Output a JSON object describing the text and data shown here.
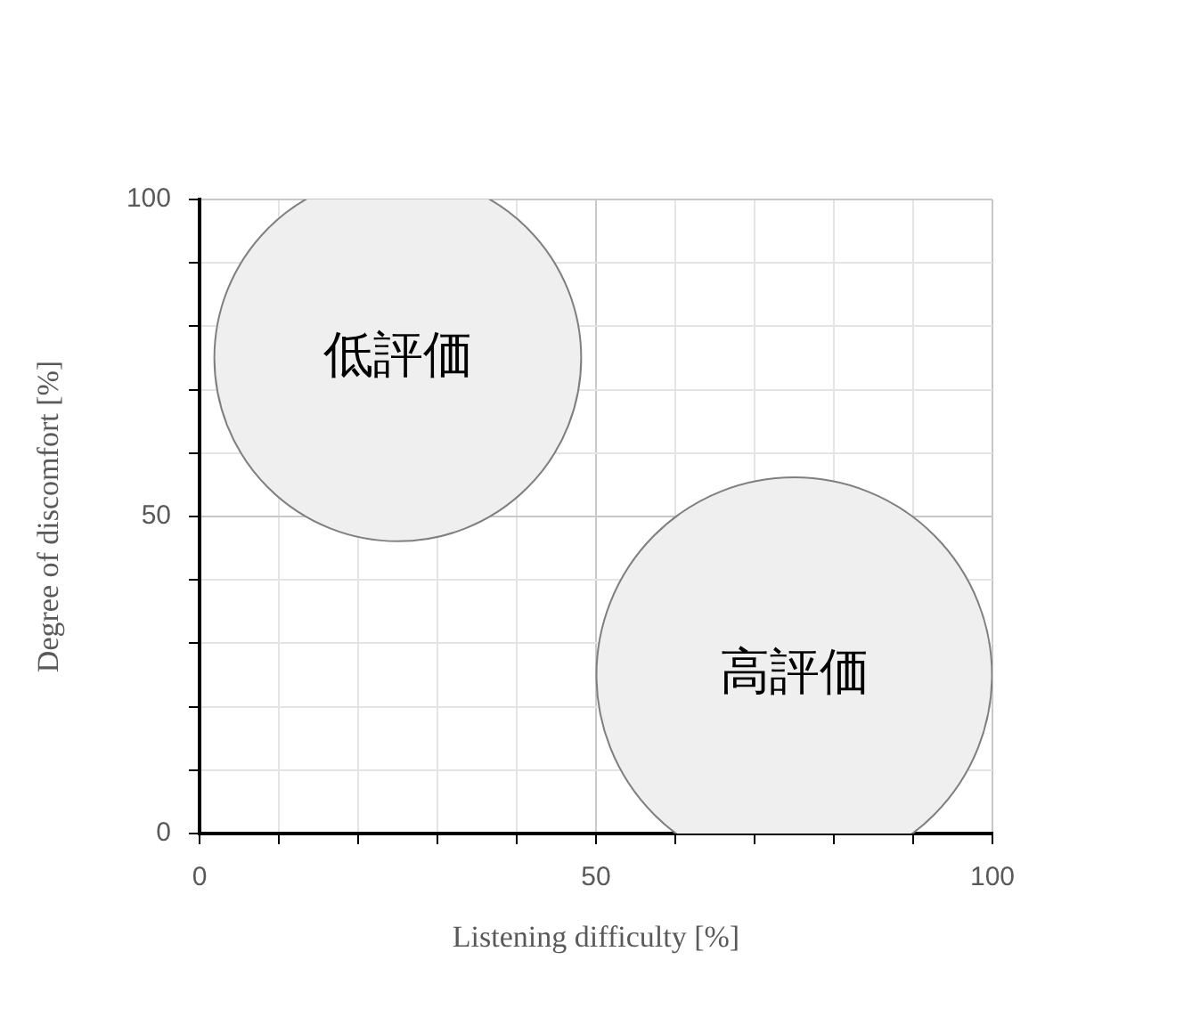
{
  "chart_data": {
    "type": "bubble",
    "xlabel": "Listening difficulty [%]",
    "ylabel": "Degree of discomfort [%]",
    "xlim": [
      0,
      100
    ],
    "ylim": [
      0,
      100
    ],
    "xticks": [
      0,
      {
        "value": 10,
        "label": null
      },
      {
        "value": 20,
        "label": null
      },
      {
        "value": 30,
        "label": null
      },
      {
        "value": 40,
        "label": null
      },
      50,
      {
        "value": 60,
        "label": null
      },
      {
        "value": 70,
        "label": null
      },
      {
        "value": 80,
        "label": null
      },
      {
        "value": 90,
        "label": null
      },
      100
    ],
    "yticks": [
      0,
      {
        "value": 10,
        "label": null
      },
      {
        "value": 20,
        "label": null
      },
      {
        "value": 30,
        "label": null
      },
      {
        "value": 40,
        "label": null
      },
      50,
      {
        "value": 60,
        "label": null
      },
      {
        "value": 70,
        "label": null
      },
      {
        "value": 80,
        "label": null
      },
      {
        "value": 90,
        "label": null
      },
      100
    ],
    "grid": true,
    "legend": false,
    "series": [
      {
        "color": "#efefef",
        "x": [
          25,
          75
        ],
        "values": [
          75,
          25
        ],
        "sizes": [
          0.86,
          1
        ]
      }
    ],
    "annotations": [
      {
        "text": "低評価",
        "x": 25,
        "y": 75
      },
      {
        "text": "高評価",
        "x": 75,
        "y": 25
      }
    ]
  }
}
